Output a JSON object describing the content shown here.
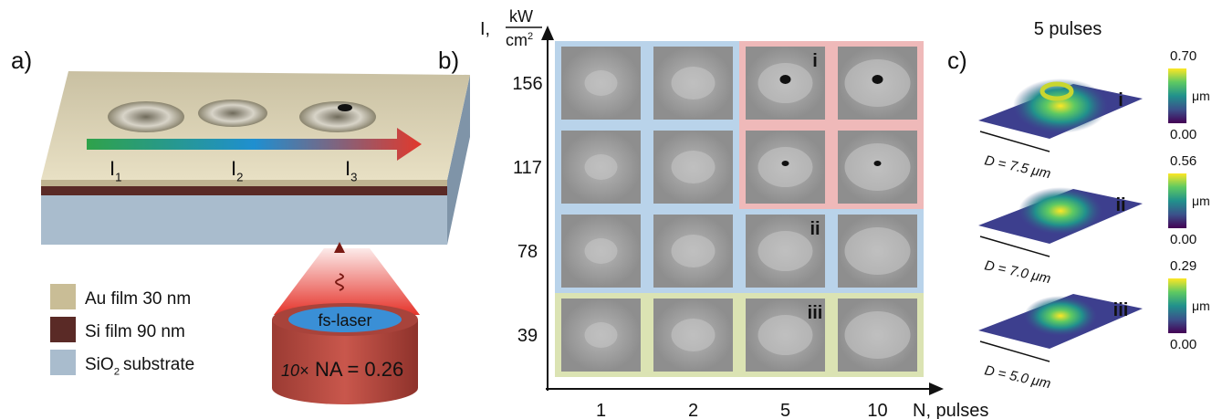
{
  "panels": {
    "a": {
      "label": "a)",
      "intensity_labels": [
        {
          "base": "I",
          "sub": "1"
        },
        {
          "base": "I",
          "sub": "2"
        },
        {
          "base": "I",
          "sub": "3"
        }
      ],
      "legend": [
        {
          "text": "Au film 30 nm"
        },
        {
          "text": "Si film 90 nm"
        },
        {
          "base": "SiO",
          "sub": "2",
          "rest": "substrate"
        }
      ],
      "laser": "fs-laser",
      "magnification": "10×",
      "aperture": "NA = 0.26"
    },
    "b": {
      "label": "b)",
      "y_axis": {
        "symbol": "I,",
        "unit_top": "kW",
        "unit_bottom": "cm",
        "unit_power": "2",
        "ticks": [
          "156",
          "117",
          "78",
          "39"
        ]
      },
      "x_axis": {
        "label": "N, pulses",
        "ticks": [
          "1",
          "2",
          "5",
          "10"
        ]
      },
      "markers": [
        "i",
        "ii",
        "iii"
      ]
    },
    "c": {
      "label": "c)",
      "title": "5 pulses",
      "plots": [
        {
          "marker": "i",
          "max": "0.70",
          "min": "0.00",
          "unit": "μm",
          "diameter": "D = 7.5 μm"
        },
        {
          "marker": "ii",
          "max": "0.56",
          "min": "0.00",
          "unit": "μm",
          "diameter": "D = 7.0 μm"
        },
        {
          "marker": "iii",
          "max": "0.29",
          "min": "0.00",
          "unit": "μm",
          "diameter": "D = 5.0 μm"
        }
      ]
    }
  }
}
